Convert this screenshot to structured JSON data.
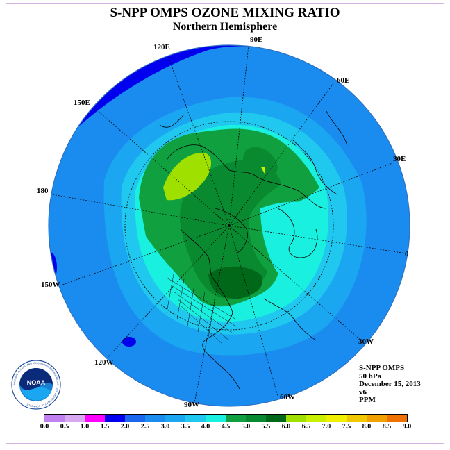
{
  "title": "S-NPP OMPS OZONE MIXING RATIO",
  "subtitle": "Northern Hemisphere",
  "longitude_labels": [
    {
      "id": "lon-90e",
      "text": "90E"
    },
    {
      "id": "lon-60e",
      "text": "60E"
    },
    {
      "id": "lon-120e",
      "text": "120E"
    },
    {
      "id": "lon-150e",
      "text": "150E"
    },
    {
      "id": "lon-30e",
      "text": "30E"
    },
    {
      "id": "lon-180",
      "text": "180"
    },
    {
      "id": "lon-0",
      "text": "0"
    },
    {
      "id": "lon-150w",
      "text": "150W"
    },
    {
      "id": "lon-30w",
      "text": "30W"
    },
    {
      "id": "lon-120w",
      "text": "120W"
    },
    {
      "id": "lon-60w",
      "text": "60W"
    },
    {
      "id": "lon-90w",
      "text": "90W"
    }
  ],
  "info": {
    "instrument": "S-NPP OMPS",
    "level": "50 hPa",
    "date": "December 15, 2013",
    "version": "v6",
    "units": "PPM"
  },
  "logo_text": "NOAA",
  "logo_ring_text": "NATIONAL OCEANIC AND ATMOSPHERIC ADMINISTRATION · U.S. DEPARTMENT OF COMMERCE",
  "colorbar": {
    "colors": [
      "#c080f0",
      "#d8a8f0",
      "#ff00ff",
      "#b000e0",
      "#0000ff",
      "#1f7fff",
      "#1aa6f0",
      "#20c8f0",
      "#19f0e0",
      "#10a040",
      "#0a8a30",
      "#006818",
      "#a0e000",
      "#c8f000",
      "#f0f000",
      "#f0c800",
      "#f0a000",
      "#f07000",
      "#f02000",
      "#e00000",
      "#a05030"
    ],
    "ticks": [
      "0.0",
      "0.5",
      "1.0",
      "1.5",
      "2.0",
      "2.5",
      "3.0",
      "3.5",
      "4.0",
      "4.5",
      "5.0",
      "5.5",
      "6.0",
      "6.5",
      "7.0",
      "7.5",
      "8.0",
      "8.5",
      "9.0"
    ]
  }
}
